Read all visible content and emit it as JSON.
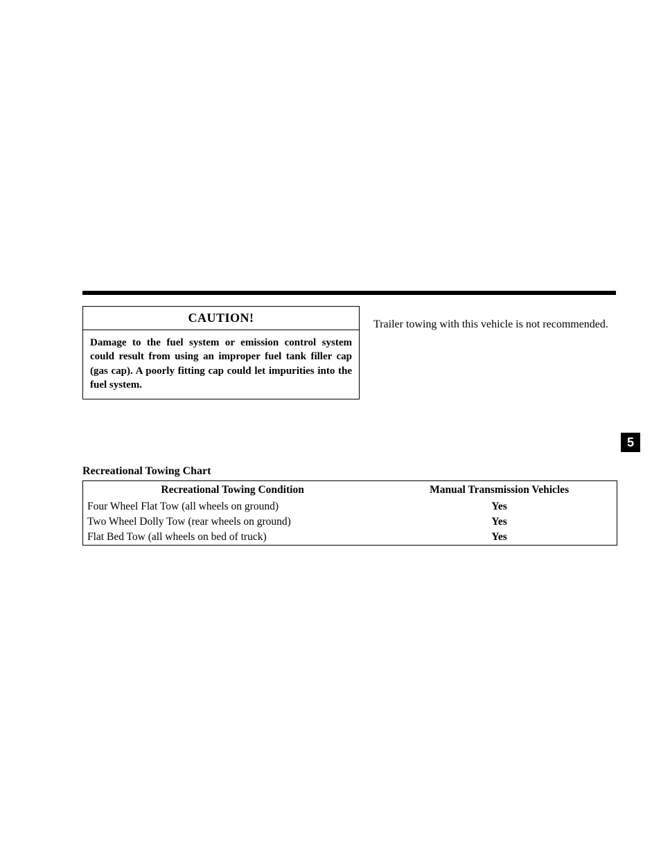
{
  "caution": {
    "header": "CAUTION!",
    "body": "Damage to the fuel system or emission control system could result from using an improper fuel tank filler cap (gas cap). A poorly fitting cap could let impurities into the fuel system."
  },
  "trailer_note": "Trailer towing with this vehicle is not recommended.",
  "section_number": "5",
  "chart": {
    "title": "Recreational Towing Chart",
    "columns": [
      "Recreational Towing Condition",
      "Manual Transmission Vehicles"
    ],
    "rows": [
      [
        "Four Wheel Flat Tow (all wheels on ground)",
        "Yes"
      ],
      [
        "Two Wheel Dolly Tow (rear wheels on ground)",
        "Yes"
      ],
      [
        "Flat Bed Tow (all wheels on bed of truck)",
        "Yes"
      ]
    ]
  },
  "colors": {
    "background": "#ffffff",
    "text": "#000000",
    "rule": "#000000",
    "tab_bg": "#000000",
    "tab_text": "#ffffff"
  }
}
